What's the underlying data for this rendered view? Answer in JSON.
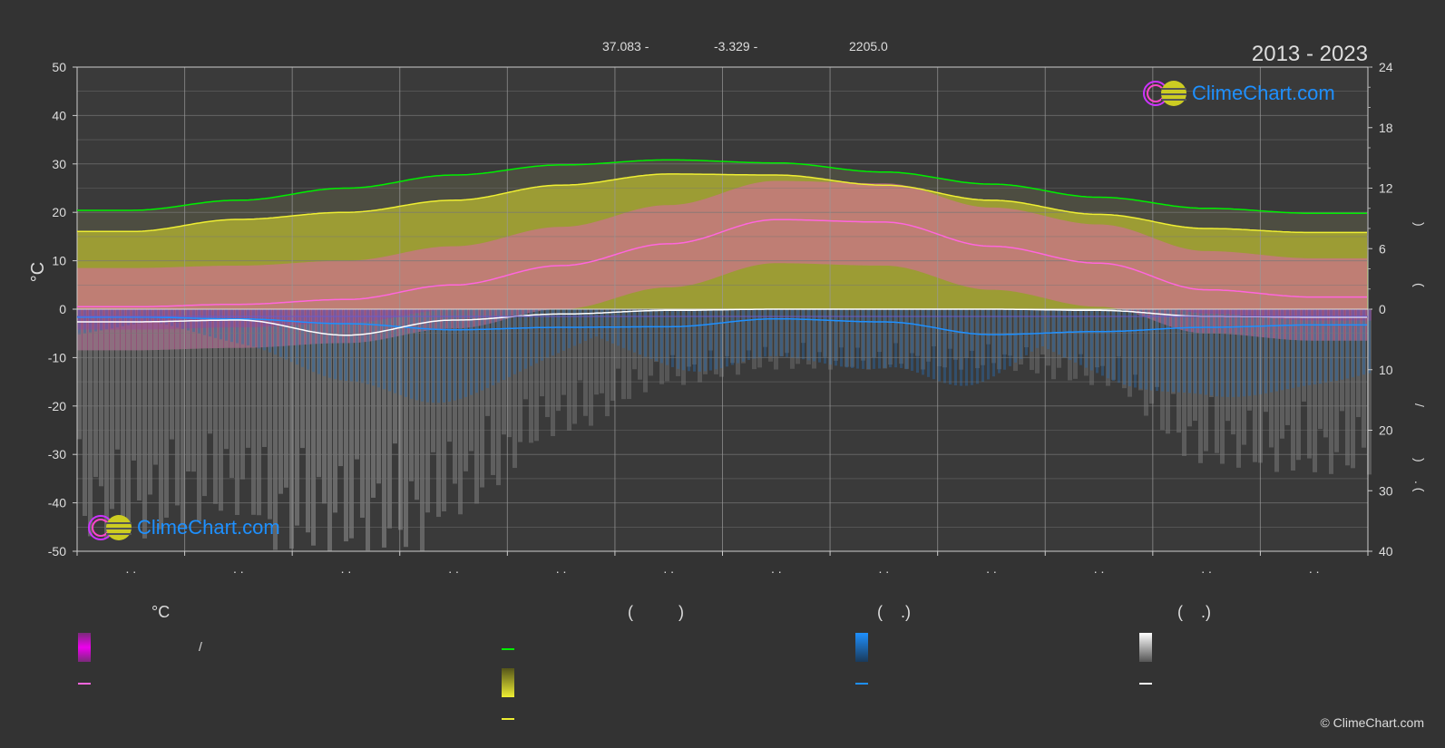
{
  "header": {
    "lat": "37.083 -",
    "lon": "-3.329 -",
    "elev": "2205.0",
    "years": "2013 - 2023"
  },
  "brand": {
    "name": "ClimeChart.com",
    "copyright": "© ClimeChart.com",
    "color": "#1e90ff"
  },
  "axes": {
    "left_label": "°C",
    "left_ticks": [
      "50",
      "40",
      "30",
      "20",
      "10",
      "0",
      "-10",
      "-20",
      "-30",
      "-40",
      "-50"
    ],
    "right_ticks_top": [
      "24",
      "18",
      "12",
      "6",
      "0"
    ],
    "right_ticks_bottom": [
      "10",
      "20",
      "30",
      "40"
    ],
    "right_label_chars": [
      ")",
      "(",
      "/",
      ")",
      ". ("
    ],
    "month_labels": [
      ". .",
      ". .",
      ". .",
      ". .",
      ". .",
      ". .",
      ". .",
      ". .",
      ". .",
      ". .",
      ". .",
      ". ."
    ]
  },
  "legend": {
    "col1_head": "°C",
    "col1_row1_text": "/",
    "col2_head": "(          )",
    "col3_head": "(    .)",
    "col4_head": "(    .)"
  },
  "colors": {
    "daylight": "#00ee00",
    "sunshine": "#eeee33",
    "mean_temp": "#ff66dd",
    "precip": "#1e90ff",
    "snow": "#ffffff",
    "temp_range": "#ee00ee",
    "sunshine_fill": "#aaaa33"
  },
  "chart_data": {
    "type": "line",
    "x": [
      1,
      2,
      3,
      4,
      5,
      6,
      7,
      8,
      9,
      10,
      11,
      12
    ],
    "left_axis": {
      "unit": "°C",
      "ylim": [
        -50,
        50
      ]
    },
    "right_axis_top": {
      "ylim": [
        0,
        24
      ]
    },
    "right_axis_bottom": {
      "ylim": [
        0,
        40
      ]
    },
    "series": [
      {
        "key": "daylight",
        "axis": "right_top",
        "values": [
          9.8,
          10.8,
          12.0,
          13.3,
          14.3,
          14.8,
          14.5,
          13.6,
          12.4,
          11.1,
          10.0,
          9.5
        ]
      },
      {
        "key": "sunshine",
        "axis": "right_top",
        "values": [
          7.7,
          8.9,
          9.6,
          10.8,
          12.3,
          13.4,
          13.3,
          12.3,
          10.8,
          9.4,
          8.0,
          7.6
        ]
      },
      {
        "key": "mean_temp",
        "axis": "left",
        "values": [
          0.5,
          1.0,
          2.0,
          5.0,
          9.0,
          13.5,
          18.5,
          18.0,
          13.0,
          9.5,
          4.0,
          2.5
        ]
      },
      {
        "key": "precip",
        "axis": "right_bottom",
        "values": [
          1.3,
          1.6,
          2.4,
          3.4,
          3.0,
          2.9,
          1.6,
          2.1,
          4.2,
          3.7,
          3.0,
          2.6
        ]
      },
      {
        "key": "snow",
        "axis": "right_bottom",
        "values": [
          2.1,
          1.8,
          4.3,
          1.8,
          0.8,
          0.2,
          0.0,
          0.0,
          0.0,
          0.2,
          1.2,
          1.3
        ]
      }
    ]
  }
}
